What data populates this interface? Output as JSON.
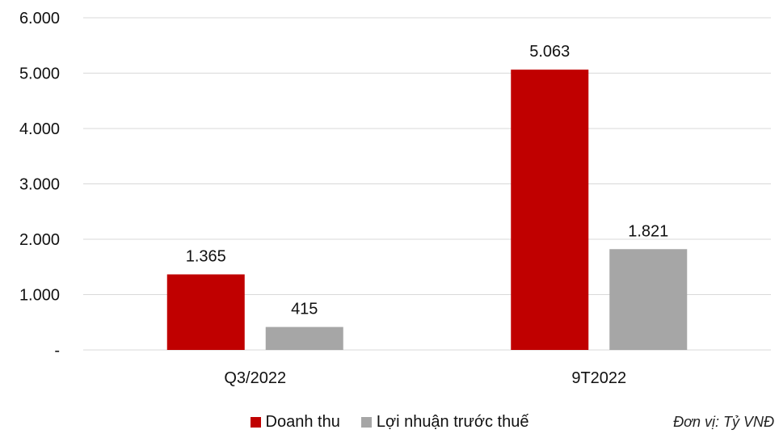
{
  "chart_data": {
    "type": "bar",
    "categories": [
      "Q3/2022",
      "9T2022"
    ],
    "series": [
      {
        "name": "Doanh thu",
        "color": "#c00000",
        "values": [
          1365,
          5063
        ],
        "labels": [
          "1.365",
          "5.063"
        ]
      },
      {
        "name": "Lợi nhuận trước thuế",
        "color": "#a6a6a6",
        "values": [
          415,
          1821
        ],
        "labels": [
          "415",
          "1.821"
        ]
      }
    ],
    "ylim": [
      0,
      6000
    ],
    "yticks": [
      0,
      1000,
      2000,
      3000,
      4000,
      5000,
      6000
    ],
    "ytick_labels": [
      "-",
      "1.000",
      "2.000",
      "3.000",
      "4.000",
      "5.000",
      "6.000"
    ],
    "grid": true,
    "legend": "bottom"
  },
  "unit_note": "Đơn vị: Tỷ VNĐ"
}
